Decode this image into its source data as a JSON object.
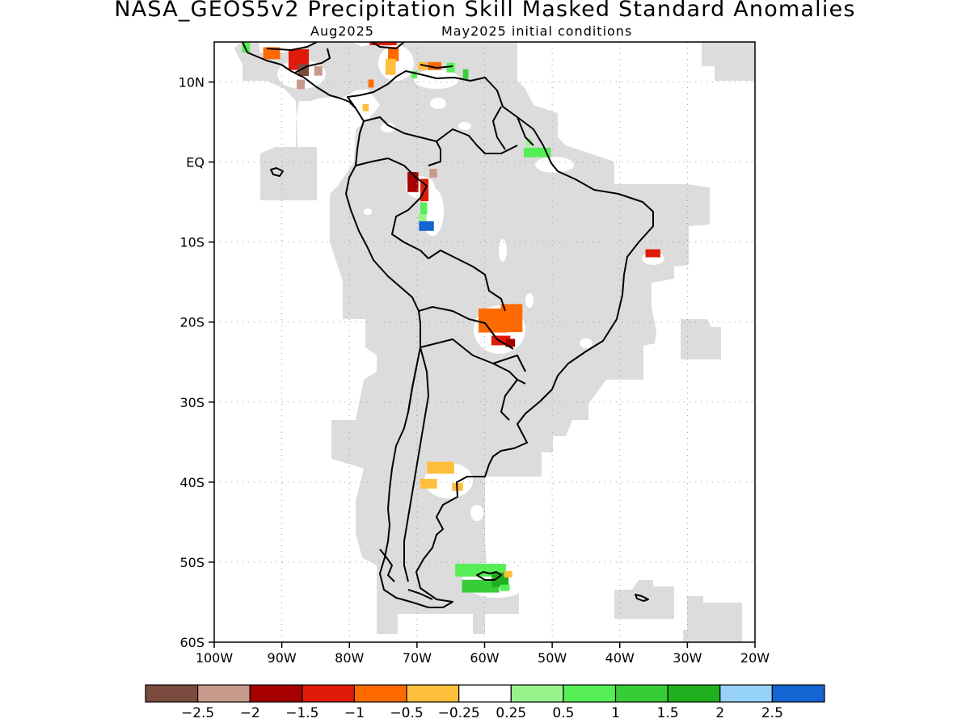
{
  "title": "NASA_GEOS5v2 Precipitation Skill Masked Standard Anomalies",
  "subtitle_left": "Aug2025",
  "subtitle_right": "May2025 initial conditions",
  "map": {
    "region": "South America",
    "lon_range": [
      -100,
      -20
    ],
    "lat_range": [
      -60,
      15
    ],
    "grid": "dotted",
    "mask_color": "#dcdcdc",
    "coastline_color": "#000000"
  },
  "lon_ticks": [
    {
      "value": -100,
      "label": "100W"
    },
    {
      "value": -90,
      "label": "90W"
    },
    {
      "value": -80,
      "label": "80W"
    },
    {
      "value": -70,
      "label": "70W"
    },
    {
      "value": -60,
      "label": "60W"
    },
    {
      "value": -50,
      "label": "50W"
    },
    {
      "value": -40,
      "label": "40W"
    },
    {
      "value": -30,
      "label": "30W"
    },
    {
      "value": -20,
      "label": "20W"
    }
  ],
  "lat_ticks": [
    {
      "value": 10,
      "label": "10N"
    },
    {
      "value": 0,
      "label": "EQ"
    },
    {
      "value": -10,
      "label": "10S"
    },
    {
      "value": -20,
      "label": "20S"
    },
    {
      "value": -30,
      "label": "30S"
    },
    {
      "value": -40,
      "label": "40S"
    },
    {
      "value": -50,
      "label": "50S"
    },
    {
      "value": -60,
      "label": "60S"
    }
  ],
  "colorbar": {
    "colors": [
      "#7b4b3f",
      "#c89a8c",
      "#a60000",
      "#e01b0b",
      "#ff6a00",
      "#ffbe3c",
      "#ffffff",
      "#98f28c",
      "#55ee55",
      "#37cd37",
      "#1eb01e",
      "#96d2fa",
      "#1464d2"
    ],
    "labels": [
      "−2.5",
      "−2",
      "−1.5",
      "−1",
      "−0.5",
      "−0.25",
      "0.25",
      "0.5",
      "1",
      "1.5",
      "2",
      "2.5"
    ]
  },
  "anomaly_patches": [
    {
      "lon": -87.5,
      "lat": 12.8,
      "w": 3.0,
      "h": 2.6,
      "color": "#e01b0b"
    },
    {
      "lon": -91.5,
      "lat": 13.6,
      "w": 2.5,
      "h": 1.5,
      "color": "#ff6a00"
    },
    {
      "lon": -86.8,
      "lat": 11.5,
      "w": 1.6,
      "h": 1.5,
      "color": "#7b4b3f"
    },
    {
      "lon": -84.6,
      "lat": 11.4,
      "w": 1.2,
      "h": 1.2,
      "color": "#c89a8c"
    },
    {
      "lon": -87.2,
      "lat": 9.7,
      "w": 1.2,
      "h": 1.2,
      "color": "#c89a8c"
    },
    {
      "lon": -95.3,
      "lat": 14.3,
      "w": 1.2,
      "h": 1.2,
      "color": "#55ee55"
    },
    {
      "lon": -75.0,
      "lat": 15.0,
      "w": 4.0,
      "h": 0.8,
      "color": "#e01b0b"
    },
    {
      "lon": -73.5,
      "lat": 13.5,
      "w": 1.6,
      "h": 1.8,
      "color": "#ff6a00"
    },
    {
      "lon": -73.9,
      "lat": 11.9,
      "w": 1.5,
      "h": 2.0,
      "color": "#ffbe3c"
    },
    {
      "lon": -69.2,
      "lat": 12.0,
      "w": 1.3,
      "h": 1.0,
      "color": "#ffbe3c"
    },
    {
      "lon": -67.4,
      "lat": 12.0,
      "w": 2.0,
      "h": 1.0,
      "color": "#ff6a00"
    },
    {
      "lon": -65.0,
      "lat": 11.8,
      "w": 1.2,
      "h": 1.2,
      "color": "#55ee55"
    },
    {
      "lon": -62.8,
      "lat": 11.0,
      "w": 0.8,
      "h": 1.2,
      "color": "#37cd37"
    },
    {
      "lon": -70.4,
      "lat": 10.9,
      "w": 0.8,
      "h": 0.9,
      "color": "#55ee55"
    },
    {
      "lon": -76.8,
      "lat": 9.8,
      "w": 0.8,
      "h": 1.0,
      "color": "#ff6a00"
    },
    {
      "lon": -77.6,
      "lat": 6.8,
      "w": 0.9,
      "h": 0.9,
      "color": "#ffbe3c"
    },
    {
      "lon": -52.2,
      "lat": 1.2,
      "w": 4.0,
      "h": 1.2,
      "color": "#55ee55"
    },
    {
      "lon": -53.4,
      "lat": 2.5,
      "w": 0.8,
      "h": 0.9,
      "color": "#98f28c"
    },
    {
      "lon": -70.6,
      "lat": -2.5,
      "w": 1.6,
      "h": 2.5,
      "color": "#a60000"
    },
    {
      "lon": -68.9,
      "lat": -3.5,
      "w": 1.2,
      "h": 2.8,
      "color": "#e01b0b"
    },
    {
      "lon": -67.6,
      "lat": -1.4,
      "w": 1.1,
      "h": 1.1,
      "color": "#c89a8c"
    },
    {
      "lon": -69.0,
      "lat": -5.8,
      "w": 1.0,
      "h": 1.5,
      "color": "#55ee55"
    },
    {
      "lon": -69.2,
      "lat": -7.0,
      "w": 1.2,
      "h": 1.0,
      "color": "#98f28c"
    },
    {
      "lon": -68.6,
      "lat": -8.0,
      "w": 2.2,
      "h": 1.2,
      "color": "#1464d2"
    },
    {
      "lon": -35.1,
      "lat": -11.4,
      "w": 2.2,
      "h": 1.0,
      "color": "#e01b0b"
    },
    {
      "lon": -58.8,
      "lat": -19.8,
      "w": 4.2,
      "h": 3.0,
      "color": "#ff6a00"
    },
    {
      "lon": -56.0,
      "lat": -19.5,
      "w": 3.2,
      "h": 3.5,
      "color": "#ff6a00"
    },
    {
      "lon": -57.6,
      "lat": -22.3,
      "w": 2.8,
      "h": 1.2,
      "color": "#e01b0b"
    },
    {
      "lon": -56.2,
      "lat": -22.6,
      "w": 1.4,
      "h": 1.0,
      "color": "#a60000"
    },
    {
      "lon": -66.5,
      "lat": -38.2,
      "w": 4.0,
      "h": 1.5,
      "color": "#ffbe3c"
    },
    {
      "lon": -68.3,
      "lat": -40.2,
      "w": 2.5,
      "h": 1.2,
      "color": "#ffbe3c"
    },
    {
      "lon": -64.0,
      "lat": -40.6,
      "w": 1.6,
      "h": 1.0,
      "color": "#ffbe3c"
    },
    {
      "lon": -60.6,
      "lat": -51.0,
      "w": 7.5,
      "h": 1.6,
      "color": "#55ee55"
    },
    {
      "lon": -60.6,
      "lat": -53.0,
      "w": 5.5,
      "h": 1.6,
      "color": "#37cd37"
    },
    {
      "lon": -57.7,
      "lat": -52.2,
      "w": 2.5,
      "h": 1.8,
      "color": "#1eb01e"
    },
    {
      "lon": -56.5,
      "lat": -51.5,
      "w": 1.2,
      "h": 0.8,
      "color": "#ffbe3c"
    },
    {
      "lon": -57.0,
      "lat": -53.2,
      "w": 1.4,
      "h": 0.8,
      "color": "#55ee55"
    }
  ]
}
